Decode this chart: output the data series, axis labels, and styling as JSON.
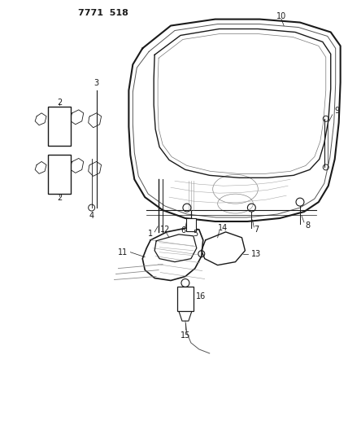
{
  "title_code": "7771 518",
  "bg_color": "#ffffff",
  "line_color": "#1a1a1a",
  "fig_width": 4.28,
  "fig_height": 5.33,
  "dpi": 100
}
